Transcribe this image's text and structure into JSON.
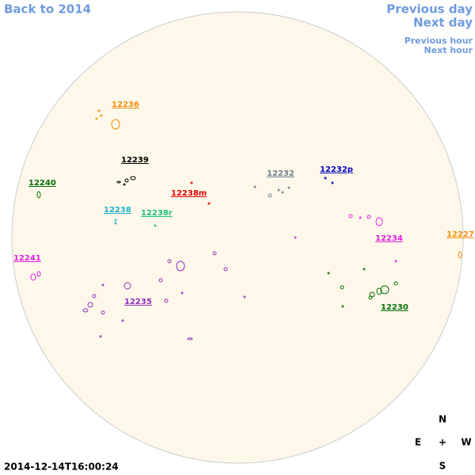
{
  "navigation": {
    "back": "Back to 2014",
    "previous_day": "Previous day",
    "next_day": "Next day",
    "previous_hour": "Previous hour",
    "next_hour": "Next hour"
  },
  "regions": [
    {
      "label": "12236",
      "color": "#f0900a"
    },
    {
      "label": "12239",
      "color": "#000000"
    },
    {
      "label": "12240",
      "color": "#087008"
    },
    {
      "label": "12238m",
      "color": "#e00000"
    },
    {
      "label": "12232",
      "color": "#708090"
    },
    {
      "label": "12232p",
      "color": "#0000c0"
    },
    {
      "label": "12238",
      "color": "#20b0d0"
    },
    {
      "label": "12238r",
      "color": "#20c080"
    },
    {
      "label": "12234",
      "color": "#e020e0"
    },
    {
      "label": "12227",
      "color": "#f0900a"
    },
    {
      "label": "12241",
      "color": "#e020e0"
    },
    {
      "label": "12235",
      "color": "#9030c0"
    },
    {
      "label": "12230",
      "color": "#087008"
    }
  ],
  "timestamp": "2014-12-14T16:00:24",
  "compass": {
    "north": "N",
    "east": "E",
    "center": "+",
    "west": "W",
    "south": "S"
  }
}
